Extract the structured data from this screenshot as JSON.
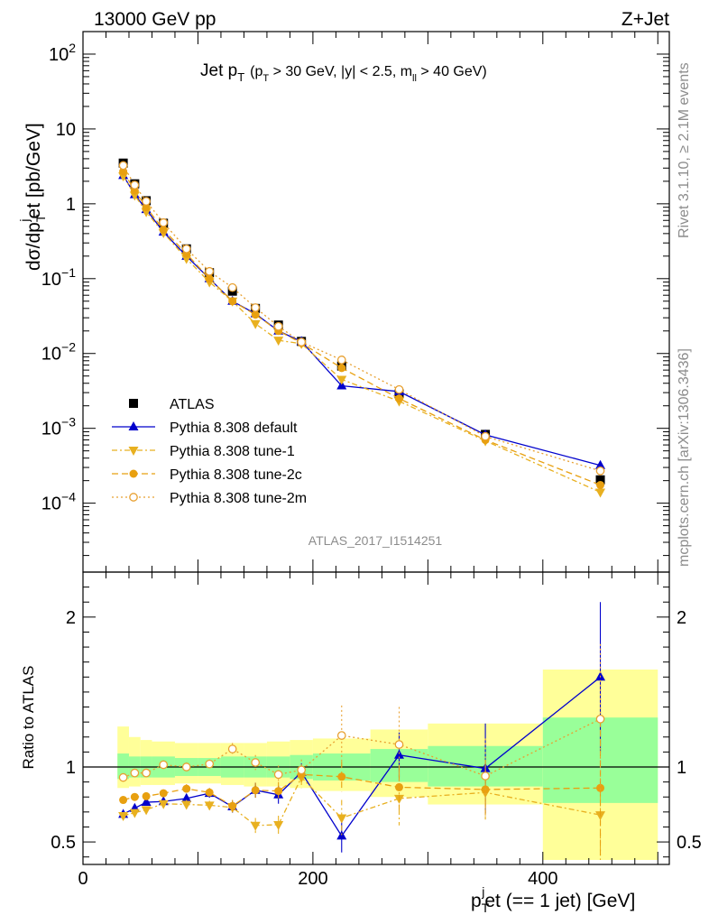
{
  "header": {
    "left": "13000 GeV pp",
    "right": "Z+Jet"
  },
  "side": {
    "rivet": "Rivet 3.1.10, ≥ 2.1M events",
    "mcplots": "mcplots.cern.ch [arXiv:1306.3436]"
  },
  "chart_data": [
    {
      "type": "scatter",
      "panel": "main",
      "title": {
        "main": "Jet p",
        "main_sub": "T",
        "cut1": "(p",
        "cut1_sub": "T",
        "cut2": " > 30 GeV, |y| < 2.5, m",
        "cut2_sub": "ll",
        "cut3": " > 40 GeV)"
      },
      "ylabel": {
        "a": "dσ/dp",
        "a_sub": "T",
        "a_sup": "j",
        "b": "et [pb/GeV]"
      },
      "yscale": "log",
      "ylim": [
        1.2e-05,
        200
      ],
      "xlim": [
        0,
        510
      ],
      "yticks": [
        {
          "v": 100,
          "base": "10",
          "exp": "2"
        },
        {
          "v": 10,
          "base": "10",
          "exp": ""
        },
        {
          "v": 1,
          "base": "1",
          "exp": ""
        },
        {
          "v": 0.1,
          "base": "10",
          "exp": "−1"
        },
        {
          "v": 0.01,
          "base": "10",
          "exp": "−2"
        },
        {
          "v": 0.001,
          "base": "10",
          "exp": "−3"
        },
        {
          "v": 0.0001,
          "base": "10",
          "exp": "−4"
        }
      ],
      "watermark": "ATLAS_2017_I1514251",
      "x": [
        35,
        45,
        55,
        70,
        90,
        110,
        130,
        150,
        170,
        190,
        225,
        275,
        350,
        450
      ],
      "series": [
        {
          "name": "ATLAS",
          "marker": "square",
          "color": "#000000",
          "line": "none",
          "values": [
            3.5,
            1.85,
            1.1,
            0.55,
            0.25,
            0.12,
            0.068,
            0.04,
            0.024,
            0.0145,
            0.0068,
            0.0029,
            0.00083,
            0.000205
          ]
        },
        {
          "name": "Pythia 8.308 default",
          "marker": "triangle-up",
          "color": "#0000cc",
          "line": "solid",
          "values": [
            2.4,
            1.33,
            0.84,
            0.42,
            0.2,
            0.1,
            0.05,
            0.034,
            0.02,
            0.0145,
            0.0037,
            0.0031,
            0.00082,
            0.00032
          ]
        },
        {
          "name": "Pythia 8.308 tune-1",
          "marker": "triangle-down",
          "color": "#e8b020",
          "line": "dashdot",
          "values": [
            2.35,
            1.3,
            0.78,
            0.41,
            0.185,
            0.09,
            0.05,
            0.025,
            0.015,
            0.0135,
            0.0045,
            0.0023,
            0.00068,
            0.00014
          ]
        },
        {
          "name": "Pythia 8.308 tune-2c",
          "marker": "circle",
          "color": "#e8a010",
          "line": "dashed",
          "values": [
            2.7,
            1.5,
            0.9,
            0.45,
            0.215,
            0.1,
            0.05,
            0.033,
            0.02,
            0.0138,
            0.0064,
            0.0025,
            0.0007,
            0.000175
          ]
        },
        {
          "name": "Pythia 8.308 tune-2m",
          "marker": "circle-open",
          "color": "#e8a030",
          "line": "dotted",
          "values": [
            3.25,
            1.78,
            1.08,
            0.56,
            0.25,
            0.125,
            0.076,
            0.041,
            0.023,
            0.0142,
            0.0082,
            0.0033,
            0.00078,
            0.00027
          ]
        }
      ]
    },
    {
      "type": "scatter",
      "panel": "ratio",
      "ylabel": "Ratio to ATLAS",
      "ylim": [
        0.35,
        2.3
      ],
      "xlim": [
        0,
        510
      ],
      "yticks": [
        0.5,
        1,
        2
      ],
      "xticks": [
        0,
        200,
        400
      ],
      "xlabel": {
        "a": "p",
        "a_sub": "T",
        "a_sup": "j",
        "b": "et (== 1 jet) [GeV]"
      },
      "bins": [
        {
          "lo": 30,
          "hi": 40,
          "stat": [
            0.92,
            1.09
          ],
          "tot": [
            0.86,
            1.27
          ]
        },
        {
          "lo": 40,
          "hi": 50,
          "stat": [
            0.93,
            1.07
          ],
          "tot": [
            0.87,
            1.2
          ]
        },
        {
          "lo": 50,
          "hi": 60,
          "stat": [
            0.93,
            1.07
          ],
          "tot": [
            0.88,
            1.18
          ]
        },
        {
          "lo": 60,
          "hi": 80,
          "stat": [
            0.93,
            1.07
          ],
          "tot": [
            0.88,
            1.17
          ]
        },
        {
          "lo": 80,
          "hi": 100,
          "stat": [
            0.94,
            1.06
          ],
          "tot": [
            0.89,
            1.16
          ]
        },
        {
          "lo": 100,
          "hi": 120,
          "stat": [
            0.94,
            1.06
          ],
          "tot": [
            0.89,
            1.16
          ]
        },
        {
          "lo": 120,
          "hi": 140,
          "stat": [
            0.93,
            1.07
          ],
          "tot": [
            0.88,
            1.16
          ]
        },
        {
          "lo": 140,
          "hi": 160,
          "stat": [
            0.93,
            1.07
          ],
          "tot": [
            0.87,
            1.16
          ]
        },
        {
          "lo": 160,
          "hi": 180,
          "stat": [
            0.93,
            1.07
          ],
          "tot": [
            0.87,
            1.17
          ]
        },
        {
          "lo": 180,
          "hi": 200,
          "stat": [
            0.92,
            1.08
          ],
          "tot": [
            0.86,
            1.18
          ]
        },
        {
          "lo": 200,
          "hi": 250,
          "stat": [
            0.91,
            1.09
          ],
          "tot": [
            0.84,
            1.19
          ]
        },
        {
          "lo": 250,
          "hi": 300,
          "stat": [
            0.9,
            1.12
          ],
          "tot": [
            0.8,
            1.25
          ]
        },
        {
          "lo": 300,
          "hi": 400,
          "stat": [
            0.87,
            1.14
          ],
          "tot": [
            0.75,
            1.29
          ]
        },
        {
          "lo": 400,
          "hi": 500,
          "stat": [
            0.76,
            1.33
          ],
          "tot": [
            0.38,
            1.65
          ]
        }
      ],
      "x": [
        35,
        45,
        55,
        70,
        90,
        110,
        130,
        150,
        170,
        190,
        225,
        275,
        350,
        450
      ],
      "series": [
        {
          "name": "Pythia 8.308 default",
          "color": "#0000cc",
          "marker": "triangle-up",
          "line": "solid",
          "values": [
            0.685,
            0.725,
            0.765,
            0.77,
            0.79,
            0.825,
            0.735,
            0.845,
            0.815,
            0.965,
            0.54,
            1.08,
            0.99,
            1.6
          ],
          "err": [
            0.02,
            0.02,
            0.02,
            0.02,
            0.03,
            0.03,
            0.04,
            0.05,
            0.06,
            0.06,
            0.11,
            0.15,
            0.3,
            0.5
          ]
        },
        {
          "name": "Pythia 8.308 tune-1",
          "color": "#e8b020",
          "marker": "triangle-down",
          "line": "dashdot",
          "values": [
            0.675,
            0.695,
            0.715,
            0.755,
            0.75,
            0.745,
            0.73,
            0.61,
            0.615,
            0.93,
            0.66,
            0.79,
            0.83,
            0.68
          ],
          "err": [
            0.02,
            0.02,
            0.02,
            0.02,
            0.03,
            0.03,
            0.04,
            0.05,
            0.06,
            0.07,
            0.12,
            0.18,
            0.18,
            0.3
          ]
        },
        {
          "name": "Pythia 8.308 tune-2c",
          "color": "#e8a010",
          "marker": "circle",
          "line": "dashed",
          "values": [
            0.78,
            0.8,
            0.805,
            0.825,
            0.855,
            0.83,
            0.74,
            0.845,
            0.84,
            0.95,
            0.935,
            0.865,
            0.85,
            0.86
          ],
          "err": [
            0.02,
            0.02,
            0.02,
            0.02,
            0.03,
            0.03,
            0.04,
            0.05,
            0.06,
            0.06,
            0.1,
            0.15,
            0.2,
            0.45
          ]
        },
        {
          "name": "Pythia 8.308 tune-2m",
          "color": "#e8a030",
          "marker": "circle-open",
          "line": "dotted",
          "values": [
            0.93,
            0.96,
            0.96,
            1.015,
            1.0,
            1.02,
            1.12,
            1.03,
            0.95,
            0.98,
            1.21,
            1.15,
            0.94,
            1.32
          ],
          "err": [
            0.02,
            0.02,
            0.02,
            0.02,
            0.03,
            0.03,
            0.04,
            0.05,
            0.06,
            0.07,
            0.2,
            0.25,
            0.25,
            0.5
          ]
        }
      ]
    }
  ]
}
